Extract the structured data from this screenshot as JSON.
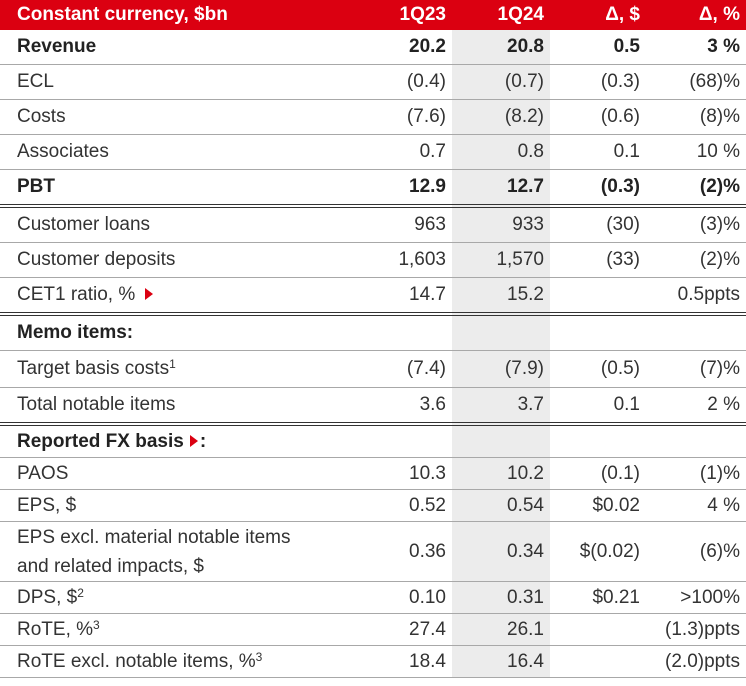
{
  "table": {
    "header": [
      "Constant currency, $bn",
      "1Q23",
      "1Q24",
      "Δ, $",
      "Δ, %"
    ],
    "groups": [
      {
        "rows": [
          {
            "label": "Revenue",
            "values": [
              "20.2",
              "20.8",
              "0.5",
              "3 %"
            ]
          },
          {
            "label": "ECL",
            "values": [
              "(0.4)",
              "(0.7)",
              "(0.3)",
              "(68)%"
            ]
          },
          {
            "label": "Costs",
            "values": [
              "(7.6)",
              "(8.2)",
              "(0.6)",
              "(8)%"
            ]
          },
          {
            "label": "Associates",
            "values": [
              "0.7",
              "0.8",
              "0.1",
              "10 %"
            ]
          },
          {
            "label": "PBT",
            "values": [
              "12.9",
              "12.7",
              "(0.3)",
              "(2)%"
            ]
          }
        ]
      },
      {
        "rows": [
          {
            "label": "Customer loans",
            "values": [
              "963",
              "933",
              "(30)",
              "(3)%"
            ]
          },
          {
            "label": "Customer deposits",
            "values": [
              "1,603",
              "1,570",
              "(33)",
              "(2)%"
            ]
          },
          {
            "label": "CET1 ratio, %",
            "values": [
              "14.7",
              "15.2",
              null,
              "0.5ppts"
            ]
          }
        ]
      },
      {
        "title": "Memo items:",
        "rows": [
          {
            "label": "Target basis costs",
            "note": "1",
            "values": [
              "(7.4)",
              "(7.9)",
              "(0.5)",
              "(7)%"
            ]
          },
          {
            "label": "Total notable items",
            "values": [
              "3.6",
              "3.7",
              "0.1",
              "2 %"
            ]
          }
        ]
      },
      {
        "title": "Reported FX basis",
        "title_end": ":",
        "rows": [
          {
            "label": "PAOS",
            "values": [
              "10.3",
              "10.2",
              "(0.1)",
              "(1)%"
            ]
          },
          {
            "label": "EPS, $",
            "values": [
              "0.52",
              "0.54",
              "$0.02",
              "4 %"
            ]
          },
          {
            "label": [
              "EPS excl. material notable items",
              "and related impacts, $"
            ],
            "values": [
              "0.36",
              "0.34",
              "$(0.02)",
              "(6)%"
            ]
          },
          {
            "label": "DPS, $",
            "note": "2",
            "values": [
              "0.10",
              "0.31",
              "$0.21",
              ">100%"
            ]
          },
          {
            "label": "RoTE, %",
            "note": "3",
            "values": [
              "27.4",
              "26.1",
              null,
              "(1.3)ppts"
            ]
          },
          {
            "label": "RoTE excl. notable items, %",
            "note": "3",
            "values": [
              "18.4",
              "16.4",
              null,
              "(2.0)ppts"
            ]
          }
        ]
      }
    ]
  }
}
